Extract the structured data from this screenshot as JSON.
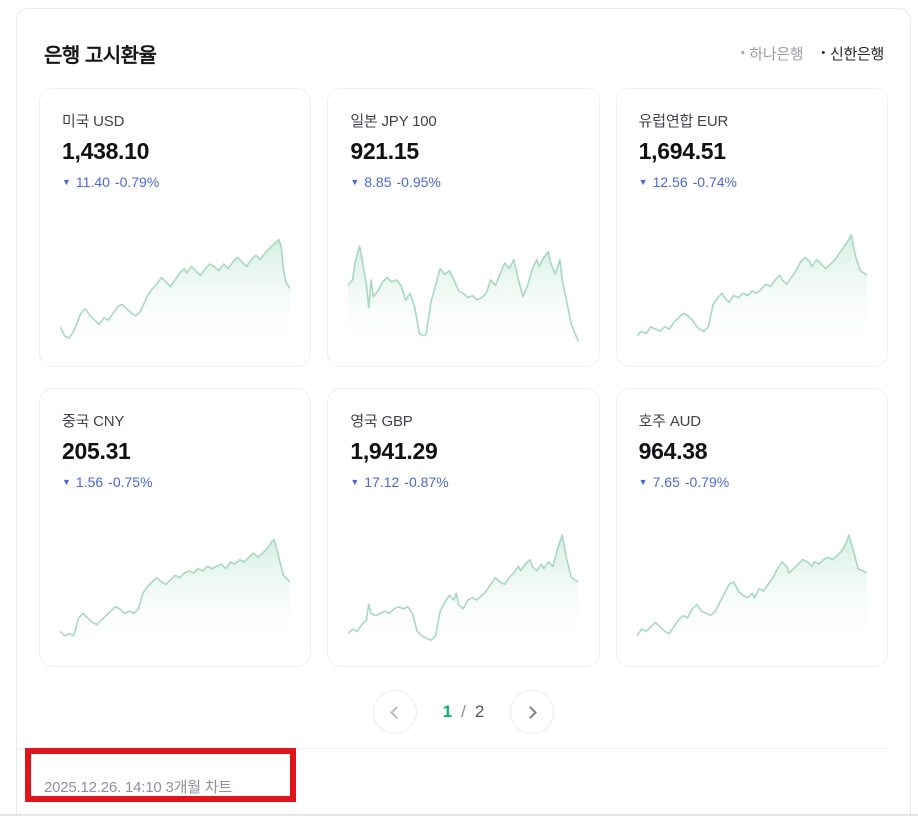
{
  "header": {
    "title": "은행 고시환율",
    "banks": [
      {
        "label": "하나은행",
        "bullet": "•",
        "selected": false
      },
      {
        "label": "신한은행",
        "bullet": "•",
        "selected": true
      }
    ]
  },
  "cards": [
    {
      "name": "미국 USD",
      "price": "1,438.10",
      "arrow": "▼",
      "change": "11.40",
      "change_pct": "-0.79%",
      "direction": "down",
      "sparkline": [
        [
          0,
          18
        ],
        [
          2,
          10
        ],
        [
          4,
          8
        ],
        [
          6,
          14
        ],
        [
          9,
          30
        ],
        [
          11,
          34
        ],
        [
          13,
          28
        ],
        [
          15,
          24
        ],
        [
          17,
          20
        ],
        [
          19,
          26
        ],
        [
          21,
          24
        ],
        [
          23,
          30
        ],
        [
          25,
          36
        ],
        [
          27,
          38
        ],
        [
          29,
          34
        ],
        [
          31,
          30
        ],
        [
          33,
          28
        ],
        [
          35,
          32
        ],
        [
          38,
          46
        ],
        [
          40,
          52
        ],
        [
          42,
          56
        ],
        [
          44,
          62
        ],
        [
          46,
          58
        ],
        [
          48,
          54
        ],
        [
          50,
          60
        ],
        [
          52,
          66
        ],
        [
          54,
          70
        ],
        [
          55,
          66
        ],
        [
          57,
          72
        ],
        [
          59,
          68
        ],
        [
          61,
          64
        ],
        [
          63,
          70
        ],
        [
          65,
          74
        ],
        [
          67,
          72
        ],
        [
          69,
          68
        ],
        [
          71,
          74
        ],
        [
          73,
          70
        ],
        [
          75,
          76
        ],
        [
          77,
          80
        ],
        [
          79,
          76
        ],
        [
          81,
          72
        ],
        [
          83,
          78
        ],
        [
          85,
          82
        ],
        [
          87,
          78
        ],
        [
          89,
          84
        ],
        [
          91,
          88
        ],
        [
          93,
          92
        ],
        [
          95,
          96
        ],
        [
          96,
          90
        ],
        [
          97,
          70
        ],
        [
          98,
          58
        ],
        [
          100,
          52
        ]
      ]
    },
    {
      "name": "일본 JPY 100",
      "price": "921.15",
      "arrow": "▼",
      "change": "8.85",
      "change_pct": "-0.95%",
      "direction": "down",
      "sparkline": [
        [
          0,
          55
        ],
        [
          2,
          60
        ],
        [
          3,
          75
        ],
        [
          5,
          90
        ],
        [
          6,
          80
        ],
        [
          8,
          55
        ],
        [
          9,
          35
        ],
        [
          10,
          60
        ],
        [
          11,
          45
        ],
        [
          13,
          50
        ],
        [
          15,
          58
        ],
        [
          17,
          62
        ],
        [
          19,
          58
        ],
        [
          21,
          60
        ],
        [
          23,
          55
        ],
        [
          25,
          42
        ],
        [
          27,
          48
        ],
        [
          29,
          35
        ],
        [
          31,
          12
        ],
        [
          33,
          10
        ],
        [
          34,
          12
        ],
        [
          36,
          40
        ],
        [
          38,
          55
        ],
        [
          40,
          70
        ],
        [
          42,
          65
        ],
        [
          44,
          68
        ],
        [
          46,
          60
        ],
        [
          48,
          50
        ],
        [
          50,
          48
        ],
        [
          52,
          44
        ],
        [
          54,
          46
        ],
        [
          56,
          42
        ],
        [
          58,
          44
        ],
        [
          60,
          48
        ],
        [
          62,
          60
        ],
        [
          64,
          55
        ],
        [
          66,
          65
        ],
        [
          68,
          75
        ],
        [
          70,
          70
        ],
        [
          72,
          78
        ],
        [
          74,
          60
        ],
        [
          76,
          45
        ],
        [
          78,
          55
        ],
        [
          80,
          70
        ],
        [
          82,
          78
        ],
        [
          83,
          72
        ],
        [
          85,
          80
        ],
        [
          87,
          85
        ],
        [
          88,
          75
        ],
        [
          90,
          65
        ],
        [
          92,
          78
        ],
        [
          93,
          60
        ],
        [
          95,
          40
        ],
        [
          97,
          20
        ],
        [
          100,
          5
        ]
      ]
    },
    {
      "name": "유럽연합 EUR",
      "price": "1,694.51",
      "arrow": "▼",
      "change": "12.56",
      "change_pct": "-0.74%",
      "direction": "down",
      "sparkline": [
        [
          0,
          10
        ],
        [
          2,
          14
        ],
        [
          4,
          12
        ],
        [
          6,
          18
        ],
        [
          8,
          16
        ],
        [
          10,
          14
        ],
        [
          12,
          18
        ],
        [
          14,
          16
        ],
        [
          16,
          22
        ],
        [
          18,
          26
        ],
        [
          20,
          30
        ],
        [
          22,
          28
        ],
        [
          24,
          24
        ],
        [
          26,
          18
        ],
        [
          27,
          16
        ],
        [
          29,
          14
        ],
        [
          31,
          18
        ],
        [
          33,
          38
        ],
        [
          35,
          44
        ],
        [
          37,
          48
        ],
        [
          38,
          44
        ],
        [
          40,
          40
        ],
        [
          42,
          46
        ],
        [
          44,
          44
        ],
        [
          46,
          48
        ],
        [
          48,
          46
        ],
        [
          50,
          50
        ],
        [
          52,
          48
        ],
        [
          54,
          52
        ],
        [
          56,
          56
        ],
        [
          58,
          54
        ],
        [
          60,
          60
        ],
        [
          62,
          64
        ],
        [
          63,
          60
        ],
        [
          65,
          56
        ],
        [
          67,
          62
        ],
        [
          69,
          68
        ],
        [
          71,
          76
        ],
        [
          73,
          80
        ],
        [
          75,
          76
        ],
        [
          76,
          72
        ],
        [
          78,
          78
        ],
        [
          80,
          74
        ],
        [
          82,
          70
        ],
        [
          84,
          74
        ],
        [
          86,
          78
        ],
        [
          88,
          84
        ],
        [
          90,
          90
        ],
        [
          92,
          96
        ],
        [
          93,
          100
        ],
        [
          95,
          80
        ],
        [
          97,
          68
        ],
        [
          100,
          64
        ]
      ]
    },
    {
      "name": "중국 CNY",
      "price": "205.31",
      "arrow": "▼",
      "change": "1.56",
      "change_pct": "-0.75%",
      "direction": "down",
      "sparkline": [
        [
          0,
          14
        ],
        [
          2,
          10
        ],
        [
          4,
          12
        ],
        [
          6,
          10
        ],
        [
          8,
          26
        ],
        [
          10,
          30
        ],
        [
          12,
          26
        ],
        [
          14,
          22
        ],
        [
          16,
          20
        ],
        [
          18,
          24
        ],
        [
          20,
          28
        ],
        [
          22,
          32
        ],
        [
          24,
          36
        ],
        [
          26,
          34
        ],
        [
          28,
          30
        ],
        [
          30,
          32
        ],
        [
          32,
          30
        ],
        [
          34,
          34
        ],
        [
          36,
          48
        ],
        [
          38,
          54
        ],
        [
          40,
          58
        ],
        [
          42,
          62
        ],
        [
          44,
          58
        ],
        [
          46,
          56
        ],
        [
          48,
          60
        ],
        [
          50,
          64
        ],
        [
          52,
          62
        ],
        [
          54,
          66
        ],
        [
          56,
          68
        ],
        [
          58,
          66
        ],
        [
          60,
          70
        ],
        [
          62,
          68
        ],
        [
          64,
          72
        ],
        [
          66,
          70
        ],
        [
          68,
          72
        ],
        [
          70,
          74
        ],
        [
          72,
          70
        ],
        [
          74,
          76
        ],
        [
          76,
          74
        ],
        [
          78,
          78
        ],
        [
          80,
          76
        ],
        [
          82,
          80
        ],
        [
          84,
          84
        ],
        [
          86,
          80
        ],
        [
          88,
          84
        ],
        [
          90,
          88
        ],
        [
          92,
          94
        ],
        [
          93,
          96
        ],
        [
          95,
          80
        ],
        [
          97,
          64
        ],
        [
          100,
          58
        ]
      ]
    },
    {
      "name": "영국 GBP",
      "price": "1,941.29",
      "arrow": "▼",
      "change": "17.12",
      "change_pct": "-0.87%",
      "direction": "down",
      "sparkline": [
        [
          0,
          12
        ],
        [
          2,
          16
        ],
        [
          4,
          14
        ],
        [
          6,
          20
        ],
        [
          8,
          24
        ],
        [
          9,
          38
        ],
        [
          10,
          30
        ],
        [
          12,
          28
        ],
        [
          14,
          30
        ],
        [
          16,
          32
        ],
        [
          18,
          30
        ],
        [
          20,
          34
        ],
        [
          22,
          36
        ],
        [
          24,
          34
        ],
        [
          26,
          36
        ],
        [
          28,
          30
        ],
        [
          30,
          14
        ],
        [
          32,
          10
        ],
        [
          34,
          8
        ],
        [
          36,
          6
        ],
        [
          38,
          10
        ],
        [
          40,
          32
        ],
        [
          42,
          40
        ],
        [
          44,
          46
        ],
        [
          46,
          42
        ],
        [
          47,
          48
        ],
        [
          48,
          38
        ],
        [
          50,
          34
        ],
        [
          52,
          42
        ],
        [
          54,
          44
        ],
        [
          56,
          42
        ],
        [
          58,
          46
        ],
        [
          60,
          50
        ],
        [
          62,
          56
        ],
        [
          64,
          62
        ],
        [
          66,
          58
        ],
        [
          68,
          56
        ],
        [
          70,
          62
        ],
        [
          72,
          66
        ],
        [
          74,
          72
        ],
        [
          75,
          68
        ],
        [
          77,
          74
        ],
        [
          79,
          78
        ],
        [
          80,
          72
        ],
        [
          82,
          68
        ],
        [
          84,
          74
        ],
        [
          85,
          70
        ],
        [
          87,
          76
        ],
        [
          89,
          72
        ],
        [
          91,
          88
        ],
        [
          93,
          100
        ],
        [
          95,
          78
        ],
        [
          97,
          62
        ],
        [
          100,
          58
        ]
      ]
    },
    {
      "name": "호주 AUD",
      "price": "964.38",
      "arrow": "▼",
      "change": "7.65",
      "change_pct": "-0.79%",
      "direction": "down",
      "sparkline": [
        [
          0,
          10
        ],
        [
          2,
          16
        ],
        [
          4,
          14
        ],
        [
          6,
          18
        ],
        [
          8,
          22
        ],
        [
          10,
          18
        ],
        [
          12,
          14
        ],
        [
          14,
          12
        ],
        [
          16,
          18
        ],
        [
          18,
          24
        ],
        [
          20,
          28
        ],
        [
          22,
          26
        ],
        [
          24,
          34
        ],
        [
          26,
          38
        ],
        [
          28,
          32
        ],
        [
          30,
          30
        ],
        [
          32,
          28
        ],
        [
          34,
          32
        ],
        [
          36,
          40
        ],
        [
          38,
          48
        ],
        [
          40,
          56
        ],
        [
          42,
          58
        ],
        [
          44,
          50
        ],
        [
          46,
          46
        ],
        [
          48,
          44
        ],
        [
          50,
          48
        ],
        [
          51,
          44
        ],
        [
          53,
          52
        ],
        [
          55,
          50
        ],
        [
          57,
          56
        ],
        [
          59,
          62
        ],
        [
          61,
          70
        ],
        [
          63,
          76
        ],
        [
          65,
          72
        ],
        [
          66,
          66
        ],
        [
          68,
          70
        ],
        [
          70,
          74
        ],
        [
          72,
          78
        ],
        [
          74,
          76
        ],
        [
          76,
          72
        ],
        [
          77,
          76
        ],
        [
          79,
          74
        ],
        [
          81,
          78
        ],
        [
          83,
          80
        ],
        [
          85,
          78
        ],
        [
          87,
          82
        ],
        [
          89,
          86
        ],
        [
          91,
          94
        ],
        [
          92,
          100
        ],
        [
          94,
          86
        ],
        [
          96,
          70
        ],
        [
          100,
          66
        ]
      ]
    }
  ],
  "pagination": {
    "current": "1",
    "separator": "/",
    "total": "2"
  },
  "footer": {
    "timestamp_and_label": "2025.12.26. 14:10 3개월 차트"
  },
  "colors": {
    "change_down_blue": "#4b68da",
    "spark_line_green": "#a6d9c0",
    "spark_fill_green": "#cdebdc",
    "page_current_green": "#10b367",
    "annotation_red": "#e0151b",
    "selected_bank_text": "#24262a",
    "unselected_bank_text": "#9aa0a8"
  }
}
